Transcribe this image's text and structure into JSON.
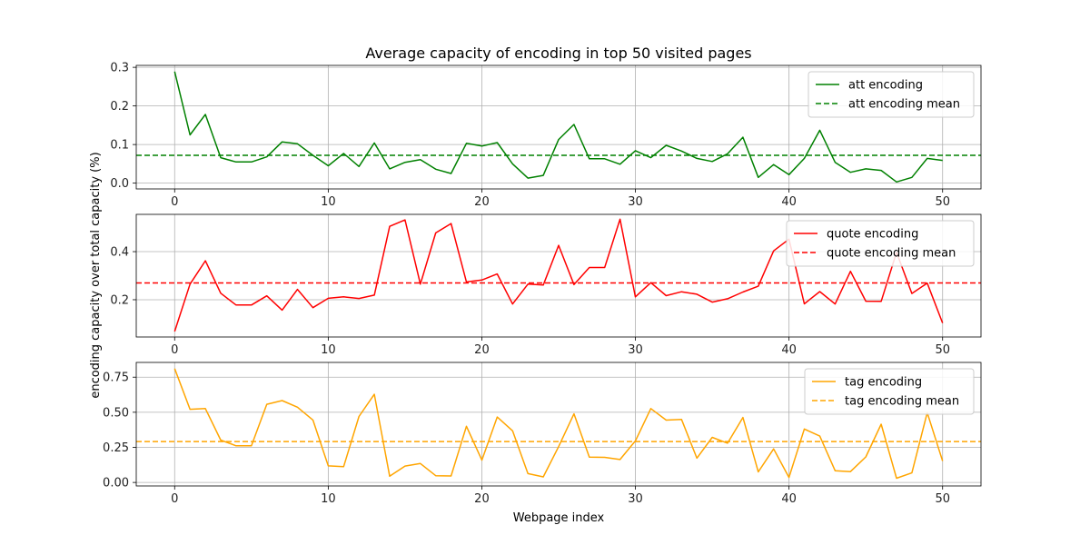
{
  "chart_data": {
    "type": "line",
    "title": "Average capacity of encoding in top 50 visited pages",
    "xlabel": "Webpage index",
    "ylabel": "encoding capacity over total capacity (%)",
    "x": [
      0,
      1,
      2,
      3,
      4,
      5,
      6,
      7,
      8,
      9,
      10,
      11,
      12,
      13,
      14,
      15,
      16,
      17,
      18,
      19,
      20,
      21,
      22,
      23,
      24,
      25,
      26,
      27,
      28,
      29,
      30,
      31,
      32,
      33,
      34,
      35,
      36,
      37,
      38,
      39,
      40,
      41,
      42,
      43,
      44,
      45,
      46,
      47,
      48,
      49,
      50
    ],
    "xlim": [
      -2.5,
      52.5
    ],
    "xticks": [
      0,
      10,
      20,
      30,
      40,
      50
    ],
    "grid": true,
    "panels": [
      {
        "ylim": [
          -0.015,
          0.305
        ],
        "yticks": [
          0.0,
          0.1,
          0.2,
          0.3
        ],
        "ytick_labels": [
          "0.0",
          "0.1",
          "0.2",
          "0.3"
        ],
        "legend_position": "top-right",
        "series": [
          {
            "name": "att encoding",
            "color": "#008000",
            "style": "solid",
            "values": [
              0.289,
              0.125,
              0.178,
              0.066,
              0.055,
              0.055,
              0.068,
              0.107,
              0.102,
              0.072,
              0.045,
              0.077,
              0.043,
              0.104,
              0.037,
              0.054,
              0.061,
              0.036,
              0.025,
              0.103,
              0.096,
              0.105,
              0.05,
              0.013,
              0.02,
              0.113,
              0.152,
              0.063,
              0.063,
              0.049,
              0.084,
              0.066,
              0.098,
              0.083,
              0.064,
              0.056,
              0.076,
              0.119,
              0.015,
              0.048,
              0.022,
              0.064,
              0.137,
              0.054,
              0.028,
              0.037,
              0.033,
              0.003,
              0.015,
              0.064,
              0.059
            ]
          },
          {
            "name": "att encoding mean",
            "color": "#008000",
            "style": "dashed",
            "mean": 0.072
          }
        ]
      },
      {
        "ylim": [
          0.045,
          0.555
        ],
        "yticks": [
          0.2,
          0.4
        ],
        "ytick_labels": [
          "0.2",
          "0.4"
        ],
        "legend_position": "top-right",
        "series": [
          {
            "name": "quote encoding",
            "color": "#ff0000",
            "style": "solid",
            "values": [
              0.068,
              0.265,
              0.362,
              0.227,
              0.178,
              0.178,
              0.216,
              0.157,
              0.243,
              0.167,
              0.206,
              0.212,
              0.205,
              0.219,
              0.505,
              0.532,
              0.265,
              0.478,
              0.517,
              0.274,
              0.282,
              0.307,
              0.182,
              0.265,
              0.261,
              0.426,
              0.263,
              0.334,
              0.334,
              0.535,
              0.212,
              0.271,
              0.217,
              0.233,
              0.223,
              0.19,
              0.204,
              0.232,
              0.256,
              0.403,
              0.452,
              0.183,
              0.234,
              0.182,
              0.318,
              0.194,
              0.193,
              0.397,
              0.226,
              0.269,
              0.103
            ]
          },
          {
            "name": "quote encoding mean",
            "color": "#ff0000",
            "style": "dashed",
            "mean": 0.27
          }
        ]
      },
      {
        "ylim": [
          -0.025,
          0.855
        ],
        "yticks": [
          0.0,
          0.25,
          0.5,
          0.75
        ],
        "ytick_labels": [
          "0.00",
          "0.25",
          "0.50",
          "0.75"
        ],
        "legend_position": "top-right",
        "series": [
          {
            "name": "tag encoding",
            "color": "#ffa500",
            "style": "solid",
            "values": [
              0.811,
              0.521,
              0.526,
              0.302,
              0.261,
              0.261,
              0.557,
              0.583,
              0.536,
              0.445,
              0.118,
              0.112,
              0.47,
              0.628,
              0.044,
              0.117,
              0.135,
              0.048,
              0.046,
              0.4,
              0.159,
              0.466,
              0.368,
              0.063,
              0.04,
              0.255,
              0.489,
              0.181,
              0.179,
              0.163,
              0.296,
              0.526,
              0.444,
              0.449,
              0.173,
              0.321,
              0.28,
              0.463,
              0.075,
              0.239,
              0.036,
              0.381,
              0.33,
              0.084,
              0.077,
              0.182,
              0.415,
              0.03,
              0.068,
              0.497,
              0.153
            ]
          },
          {
            "name": "tag encoding mean",
            "color": "#ffa500",
            "style": "dashed",
            "mean": 0.291
          }
        ]
      }
    ]
  }
}
